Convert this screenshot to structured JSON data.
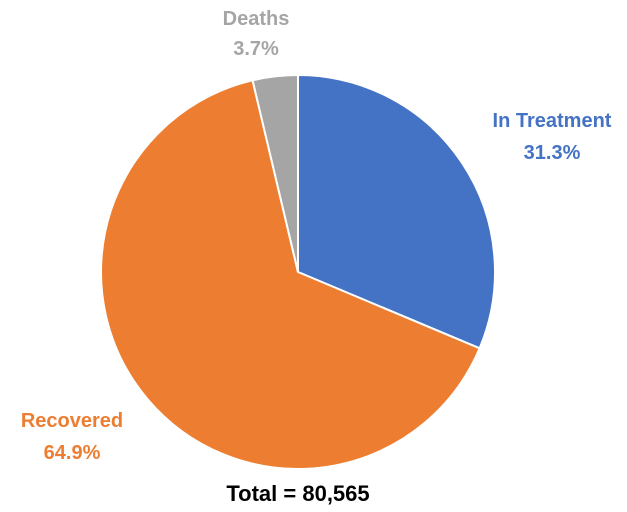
{
  "chart_data": {
    "type": "pie",
    "categories": [
      "In Treatment",
      "Recovered",
      "Deaths"
    ],
    "values": [
      31.3,
      64.9,
      3.7
    ],
    "value_labels": [
      "31.3%",
      "64.9%",
      "3.7%"
    ],
    "colors": [
      "#4472C4",
      "#ED7D31",
      "#A5A5A5"
    ],
    "label_colors": [
      "#4472C4",
      "#ED7D31",
      "#A5A5A5"
    ],
    "start_angle": "12 o'clock",
    "direction": "clockwise",
    "footer": "Total = 80,565"
  }
}
